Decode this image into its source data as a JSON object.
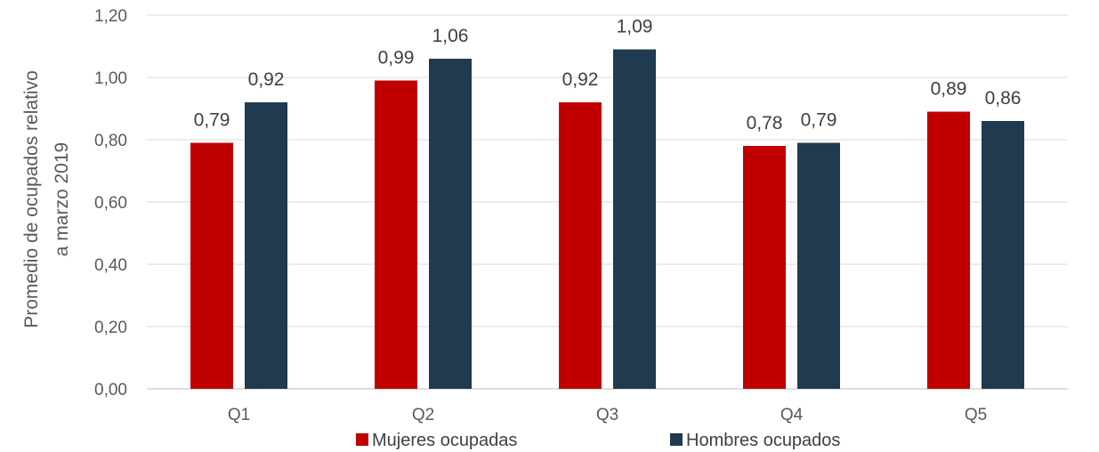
{
  "chart_data": {
    "type": "bar",
    "categories": [
      "Q1",
      "Q2",
      "Q3",
      "Q4",
      "Q5"
    ],
    "series": [
      {
        "name": "Mujeres ocupadas",
        "color": "#c00000",
        "values": [
          0.79,
          0.99,
          0.92,
          0.78,
          0.89
        ],
        "labels": [
          "0,79",
          "0,99",
          "0,92",
          "0,78",
          "0,89"
        ]
      },
      {
        "name": "Hombres ocupados",
        "color": "#203a4f",
        "values": [
          0.92,
          1.06,
          1.09,
          0.79,
          0.86
        ],
        "labels": [
          "0,92",
          "1,06",
          "1,09",
          "0,79",
          "0,86"
        ]
      }
    ],
    "ylabel": [
      "Promedio de ocupados relativo",
      "a marzo 2019"
    ],
    "xlabel": "",
    "ylim": [
      0,
      1.2
    ],
    "yticks": [
      0,
      0.2,
      0.4,
      0.6,
      0.8,
      1.0,
      1.2
    ],
    "ytick_labels": [
      "0,00",
      "0,20",
      "0,40",
      "0,60",
      "0,80",
      "1,00",
      "1,20"
    ],
    "grid": true,
    "legend": "bottom-center"
  }
}
